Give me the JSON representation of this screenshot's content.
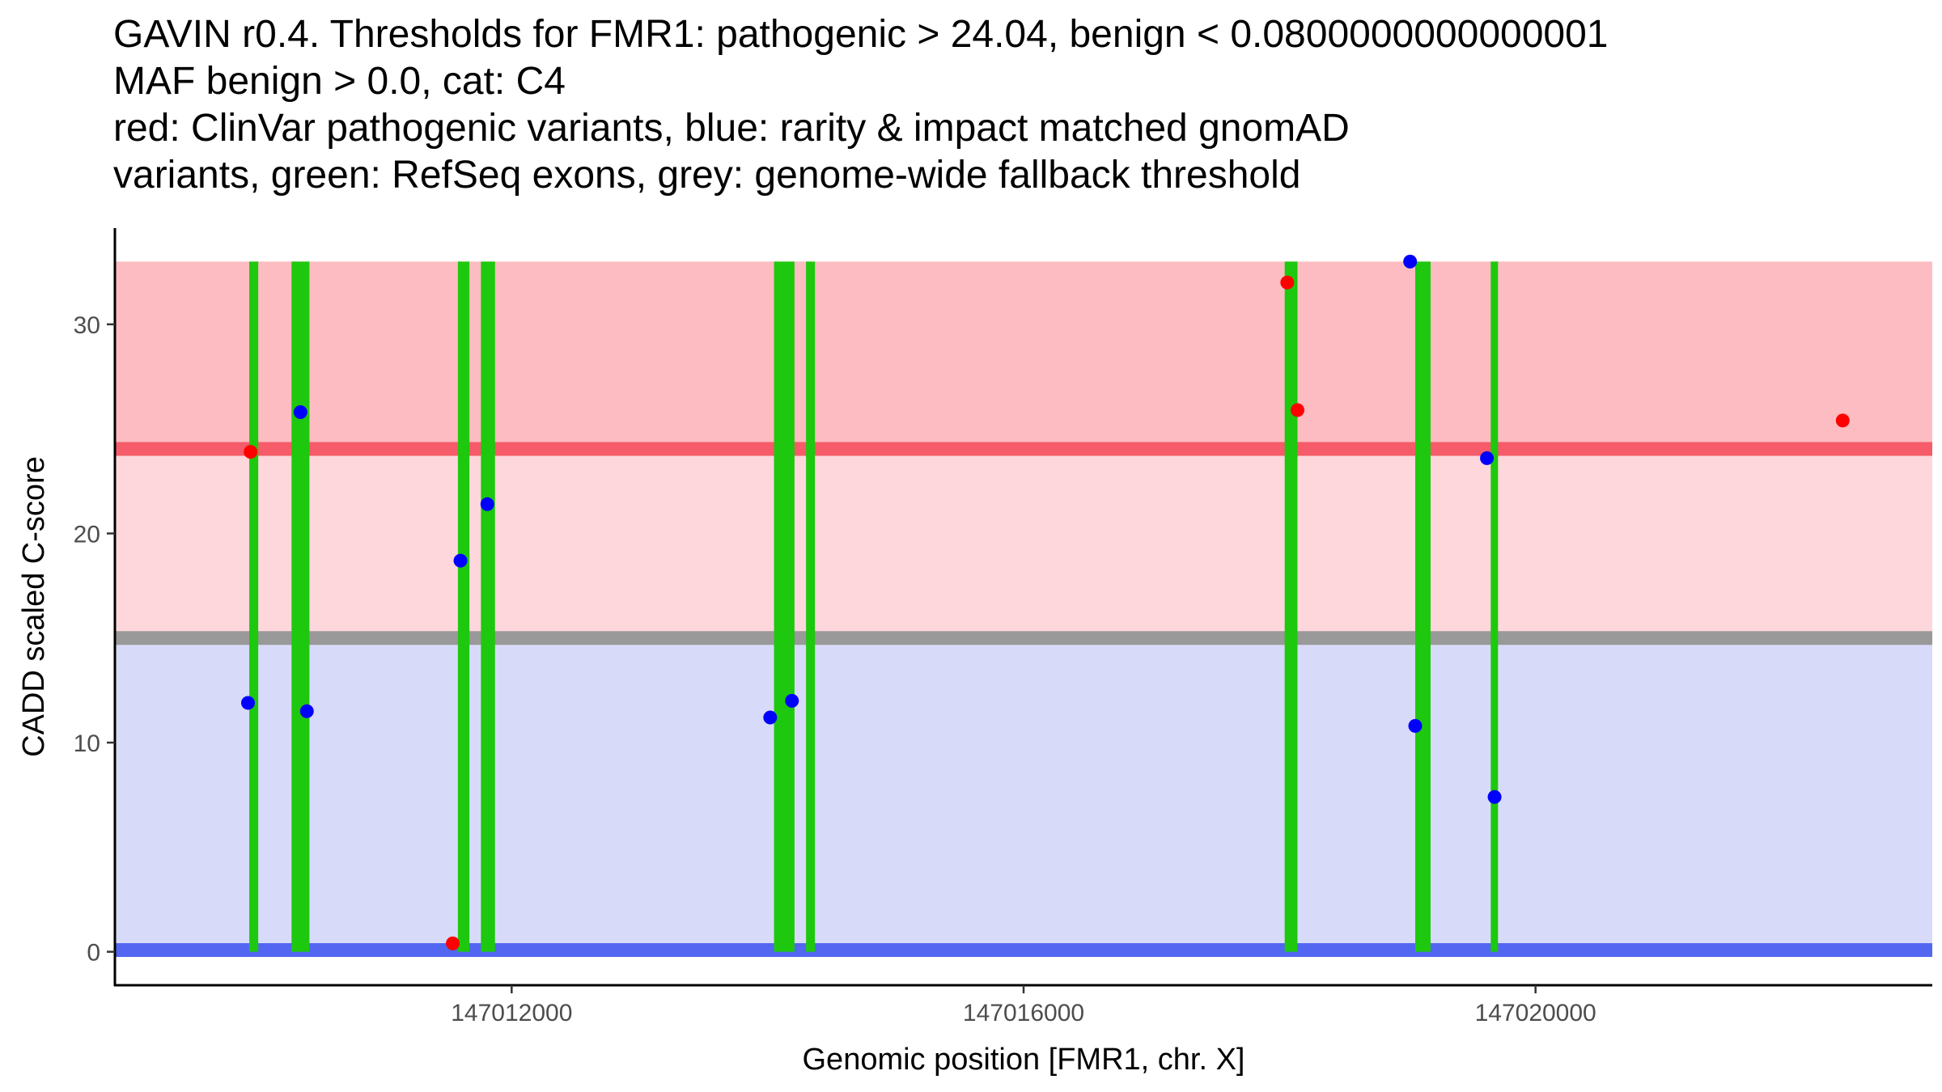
{
  "title_lines": [
    "GAVIN r0.4. Thresholds for FMR1: pathogenic > 24.04, benign < 0.0800000000000001",
    "MAF benign > 0.0, cat: C4",
    "red: ClinVar pathogenic variants, blue: rarity & impact matched gnomAD",
    "variants, green: RefSeq exons, grey: genome-wide fallback threshold"
  ],
  "chart_data": {
    "type": "scatter",
    "xlabel": "Genomic position [FMR1, chr. X]",
    "ylabel": "CADD scaled C-score",
    "xlim": [
      147008900,
      147023100
    ],
    "ylim": [
      -1.6,
      34.6
    ],
    "x_ticks": [
      147012000,
      147016000,
      147020000
    ],
    "x_tick_labels": [
      "147012000",
      "147016000",
      "147020000"
    ],
    "y_ticks": [
      0,
      10,
      20,
      30
    ],
    "y_tick_labels": [
      "0",
      "10",
      "20",
      "30"
    ],
    "grid": false,
    "bands": [
      {
        "name": "pathogenic-zone",
        "from": 24.04,
        "to": 33.0,
        "color": "#fcbcc1"
      },
      {
        "name": "vus-zone",
        "from": 15.0,
        "to": 24.04,
        "color": "#fdd7dc"
      },
      {
        "name": "benign-zone",
        "from": 0.08,
        "to": 15.0,
        "color": "#d8daf9"
      }
    ],
    "threshold_lines": [
      {
        "name": "pathogenic-threshold",
        "y": 24.04,
        "color": "#f55b68"
      },
      {
        "name": "fallback-threshold",
        "y": 15.0,
        "color": "#999999"
      },
      {
        "name": "benign-threshold",
        "y": 0.08,
        "color": "#5366f2"
      }
    ],
    "exons": [
      {
        "start": 147009950,
        "end": 147010020
      },
      {
        "start": 147010280,
        "end": 147010420
      },
      {
        "start": 147011580,
        "end": 147011670
      },
      {
        "start": 147011760,
        "end": 147011870
      },
      {
        "start": 147014050,
        "end": 147014210
      },
      {
        "start": 147014300,
        "end": 147014370
      },
      {
        "start": 147018040,
        "end": 147018140
      },
      {
        "start": 147019060,
        "end": 147019180
      },
      {
        "start": 147019650,
        "end": 147019700
      }
    ],
    "series": [
      {
        "name": "ClinVar pathogenic variants",
        "color": "#ff0000",
        "x": [
          147009960,
          147011540,
          147018060,
          147018140,
          147022400
        ],
        "y": [
          23.9,
          0.4,
          32.0,
          25.9,
          25.4
        ]
      },
      {
        "name": "rarity & impact matched gnomAD variants",
        "color": "#0000ff",
        "x": [
          147009940,
          147010350,
          147010400,
          147011600,
          147011810,
          147014020,
          147014190,
          147019020,
          147019060,
          147019620,
          147019680
        ],
        "y": [
          11.9,
          25.8,
          11.5,
          18.7,
          21.4,
          11.2,
          12.0,
          33.0,
          10.8,
          23.6,
          7.4
        ]
      }
    ]
  }
}
